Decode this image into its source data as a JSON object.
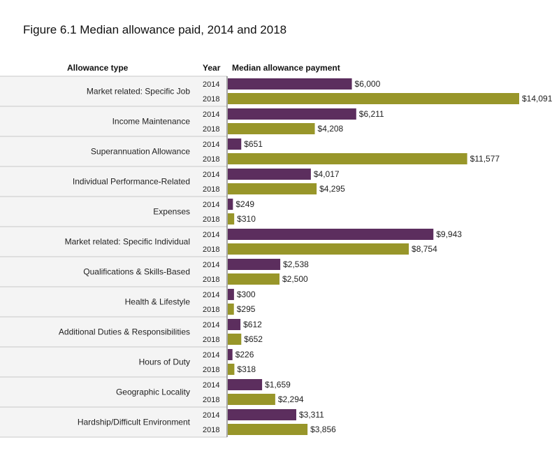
{
  "chart_data": {
    "type": "bar",
    "title": "Figure 6.1 Median allowance paid, 2014 and 2018",
    "column_headers": {
      "category": "Allowance type",
      "year": "Year",
      "value": "Median allowance payment"
    },
    "series": [
      {
        "name": "2014",
        "color": "#5c2e5e"
      },
      {
        "name": "2018",
        "color": "#98962a"
      }
    ],
    "categories": [
      {
        "label": "Market related: Specific Job",
        "values": [
          6000,
          14091
        ],
        "value_labels": [
          "$6,000",
          "$14,091"
        ]
      },
      {
        "label": "Income Maintenance",
        "values": [
          6211,
          4208
        ],
        "value_labels": [
          "$6,211",
          "$4,208"
        ]
      },
      {
        "label": "Superannuation Allowance",
        "values": [
          651,
          11577
        ],
        "value_labels": [
          "$651",
          "$11,577"
        ]
      },
      {
        "label": "Individual Performance-Related",
        "values": [
          4017,
          4295
        ],
        "value_labels": [
          "$4,017",
          "$4,295"
        ]
      },
      {
        "label": "Expenses",
        "values": [
          249,
          310
        ],
        "value_labels": [
          "$249",
          "$310"
        ]
      },
      {
        "label": "Market related: Specific Individual",
        "values": [
          9943,
          8754
        ],
        "value_labels": [
          "$9,943",
          "$8,754"
        ]
      },
      {
        "label": "Qualifications & Skills-Based",
        "values": [
          2538,
          2500
        ],
        "value_labels": [
          "$2,538",
          "$2,500"
        ]
      },
      {
        "label": "Health & Lifestyle",
        "values": [
          300,
          295
        ],
        "value_labels": [
          "$300",
          "$295"
        ]
      },
      {
        "label": "Additional Duties & Responsibilities",
        "values": [
          612,
          652
        ],
        "value_labels": [
          "$612",
          "$652"
        ]
      },
      {
        "label": "Hours of Duty",
        "values": [
          226,
          318
        ],
        "value_labels": [
          "$226",
          "$318"
        ]
      },
      {
        "label": "Geographic Locality",
        "values": [
          1659,
          2294
        ],
        "value_labels": [
          "$1,659",
          "$2,294"
        ]
      },
      {
        "label": "Hardship/Difficult Environment",
        "values": [
          3311,
          3856
        ],
        "value_labels": [
          "$3,311",
          "$3,856"
        ]
      }
    ],
    "xlim": [
      0,
      14091
    ],
    "grid": false,
    "legend": "none"
  }
}
